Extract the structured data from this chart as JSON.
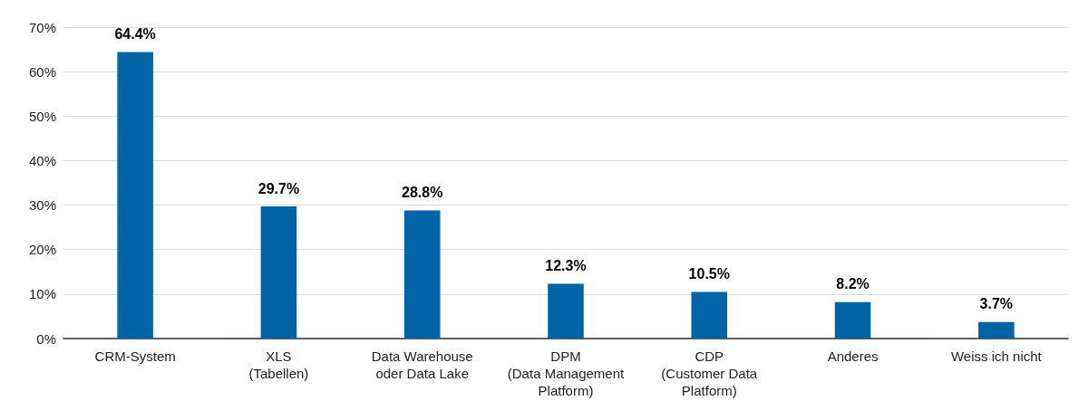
{
  "chart_data": {
    "type": "bar",
    "categories": [
      "CRM-System",
      "XLS\n(Tabellen)",
      "Data Warehouse\noder Data Lake",
      "DPM\n(Data Management\nPlatform)",
      "CDP\n(Customer Data\nPlatform)",
      "Anderes",
      "Weiss ich nicht"
    ],
    "values": [
      64.4,
      29.7,
      28.8,
      12.3,
      10.5,
      8.2,
      3.7
    ],
    "value_labels": [
      "64.4%",
      "29.7%",
      "28.8%",
      "12.3%",
      "10.5%",
      "8.2%",
      "3.7%"
    ],
    "color": "#0063a6",
    "ylim": [
      0,
      70
    ],
    "yticks": [
      {
        "value": 0,
        "label": "0%"
      },
      {
        "value": 10,
        "label": "10%"
      },
      {
        "value": 20,
        "label": "20%"
      },
      {
        "value": 30,
        "label": "30%"
      },
      {
        "value": 40,
        "label": "40%"
      },
      {
        "value": 50,
        "label": "50%"
      },
      {
        "value": 60,
        "label": "60%"
      },
      {
        "value": 70,
        "label": "70%"
      }
    ],
    "grid": "y"
  }
}
